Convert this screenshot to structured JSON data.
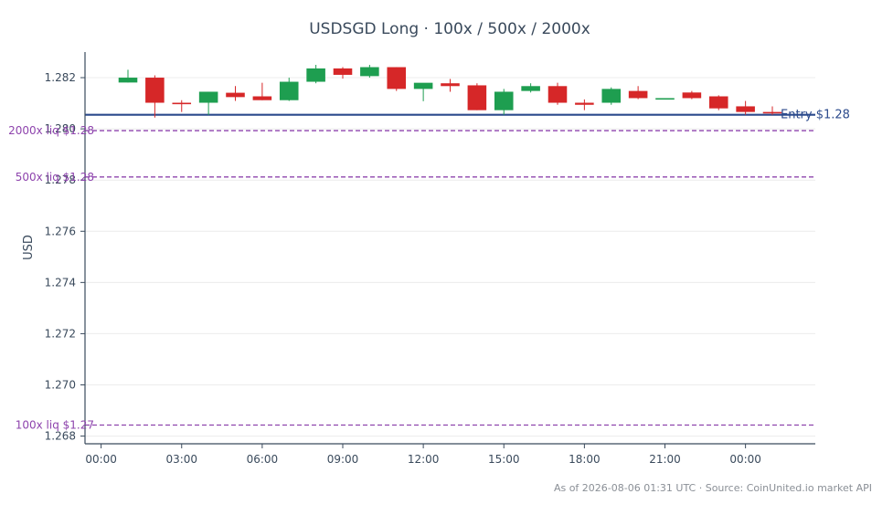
{
  "chart_data": {
    "type": "candlestick",
    "title": "USDSGD Long · 100x / 500x / 2000x",
    "ylabel": "USD",
    "xlabel": "",
    "ylim": [
      1.2677,
      1.283
    ],
    "xlim": [
      -0.6,
      26.6
    ],
    "x_ticks": [
      {
        "x": 0,
        "label": "00:00"
      },
      {
        "x": 3,
        "label": "03:00"
      },
      {
        "x": 6,
        "label": "06:00"
      },
      {
        "x": 9,
        "label": "09:00"
      },
      {
        "x": 12,
        "label": "12:00"
      },
      {
        "x": 15,
        "label": "15:00"
      },
      {
        "x": 18,
        "label": "18:00"
      },
      {
        "x": 21,
        "label": "21:00"
      },
      {
        "x": 24,
        "label": "00:00"
      }
    ],
    "y_ticks": [
      {
        "v": 1.268,
        "label": "1.268"
      },
      {
        "v": 1.27,
        "label": "1.270"
      },
      {
        "v": 1.272,
        "label": "1.272"
      },
      {
        "v": 1.274,
        "label": "1.274"
      },
      {
        "v": 1.276,
        "label": "1.276"
      },
      {
        "v": 1.278,
        "label": "1.278"
      },
      {
        "v": 1.28,
        "label": "1.280"
      },
      {
        "v": 1.282,
        "label": "1.282"
      }
    ],
    "candles": [
      {
        "x": 1,
        "open": 1.28181,
        "high": 1.28231,
        "low": 1.28181,
        "close": 1.282
      },
      {
        "x": 2,
        "open": 1.282,
        "high": 1.28209,
        "low": 1.28044,
        "close": 1.28102
      },
      {
        "x": 3,
        "open": 1.28102,
        "high": 1.28112,
        "low": 1.28066,
        "close": 1.28099
      },
      {
        "x": 4,
        "open": 1.28102,
        "high": 1.28145,
        "low": 1.28054,
        "close": 1.28145
      },
      {
        "x": 5,
        "open": 1.28141,
        "high": 1.28167,
        "low": 1.28109,
        "close": 1.28124
      },
      {
        "x": 6,
        "open": 1.28127,
        "high": 1.2818,
        "low": 1.28112,
        "close": 1.28112
      },
      {
        "x": 7,
        "open": 1.28112,
        "high": 1.282,
        "low": 1.28109,
        "close": 1.28184
      },
      {
        "x": 8,
        "open": 1.28184,
        "high": 1.2825,
        "low": 1.28178,
        "close": 1.28236
      },
      {
        "x": 9,
        "open": 1.28236,
        "high": 1.28241,
        "low": 1.28196,
        "close": 1.28211
      },
      {
        "x": 10,
        "open": 1.28206,
        "high": 1.2825,
        "low": 1.282,
        "close": 1.28241
      },
      {
        "x": 11,
        "open": 1.28241,
        "high": 1.28241,
        "low": 1.28148,
        "close": 1.28156
      },
      {
        "x": 12,
        "open": 1.28156,
        "high": 1.28178,
        "low": 1.28108,
        "close": 1.2818
      },
      {
        "x": 13,
        "open": 1.28178,
        "high": 1.28195,
        "low": 1.28145,
        "close": 1.28167
      },
      {
        "x": 14,
        "open": 1.2817,
        "high": 1.28178,
        "low": 1.28073,
        "close": 1.28073
      },
      {
        "x": 15,
        "open": 1.28073,
        "high": 1.28156,
        "low": 1.28055,
        "close": 1.28145
      },
      {
        "x": 16,
        "open": 1.28148,
        "high": 1.28178,
        "low": 1.28142,
        "close": 1.28167
      },
      {
        "x": 17,
        "open": 1.28167,
        "high": 1.2818,
        "low": 1.28094,
        "close": 1.28102
      },
      {
        "x": 18,
        "open": 1.28102,
        "high": 1.28115,
        "low": 1.28073,
        "close": 1.28094
      },
      {
        "x": 19,
        "open": 1.28102,
        "high": 1.28162,
        "low": 1.28094,
        "close": 1.28156
      },
      {
        "x": 20,
        "open": 1.28148,
        "high": 1.28167,
        "low": 1.28116,
        "close": 1.2812
      },
      {
        "x": 21,
        "open": 1.2812,
        "high": 1.2812,
        "low": 1.2812,
        "close": 1.2812
      },
      {
        "x": 22,
        "open": 1.28142,
        "high": 1.28148,
        "low": 1.28116,
        "close": 1.2812
      },
      {
        "x": 23,
        "open": 1.28127,
        "high": 1.28131,
        "low": 1.28073,
        "close": 1.2808
      },
      {
        "x": 24,
        "open": 1.28088,
        "high": 1.28109,
        "low": 1.28055,
        "close": 1.28066
      },
      {
        "x": 25,
        "open": 1.28066,
        "high": 1.28088,
        "low": 1.28055,
        "close": 1.28062
      }
    ],
    "hlines": [
      {
        "value": 1.28055,
        "label": "Entry $1.28",
        "style": "solid",
        "color": "#2b4a8c"
      },
      {
        "value": 1.27993,
        "label": "2000x liq $1.28",
        "style": "dashed",
        "color": "#8e44ad"
      },
      {
        "value": 1.27812,
        "label": "500x liq $1.28",
        "style": "dashed",
        "color": "#8e44ad"
      },
      {
        "value": 1.26843,
        "label": "100x liq $1.27",
        "style": "dashed",
        "color": "#8e44ad"
      }
    ],
    "colors": {
      "up": "#1e9e50",
      "down": "#d62728",
      "axis": "#3a4a5c",
      "grid": "#ececec"
    },
    "grid": true
  },
  "footer": "As of 2026-08-06 01:31 UTC · Source: CoinUnited.io market API"
}
